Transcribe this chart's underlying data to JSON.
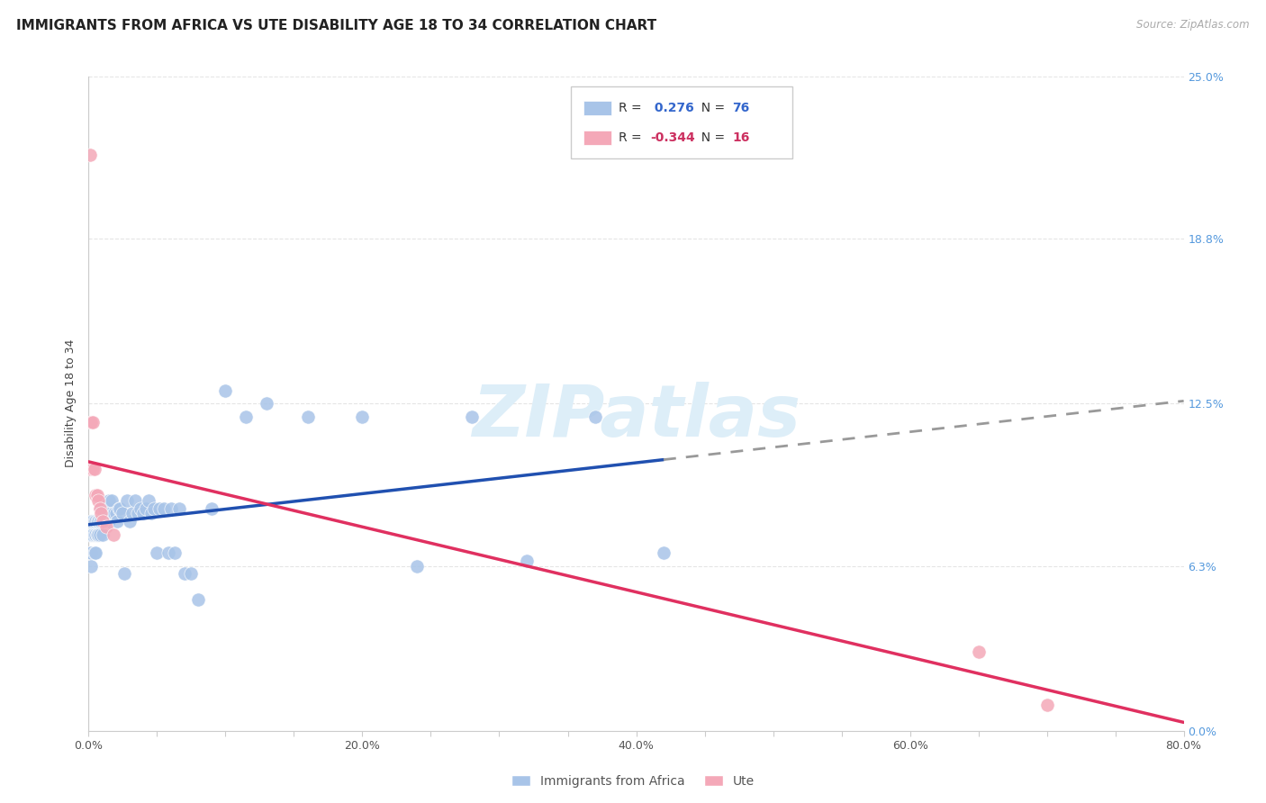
{
  "title": "IMMIGRANTS FROM AFRICA VS UTE DISABILITY AGE 18 TO 34 CORRELATION CHART",
  "source": "Source: ZipAtlas.com",
  "ylabel": "Disability Age 18 to 34",
  "legend_label_1": "Immigrants from Africa",
  "legend_label_2": "Ute",
  "r1": 0.276,
  "n1": 76,
  "r2": -0.344,
  "n2": 16,
  "color1": "#a8c4e8",
  "color2": "#f4a8b8",
  "line_color1": "#2050b0",
  "line_color2": "#e03060",
  "xlim": [
    0.0,
    0.8
  ],
  "ylim": [
    0.0,
    0.25
  ],
  "ytick_vals": [
    0.0,
    0.063,
    0.125,
    0.188,
    0.25
  ],
  "ytick_right_labels": [
    "0.0%",
    "6.3%",
    "12.5%",
    "18.8%",
    "25.0%"
  ],
  "xtick_vals": [
    0.0,
    0.05,
    0.1,
    0.15,
    0.2,
    0.25,
    0.3,
    0.35,
    0.4,
    0.45,
    0.5,
    0.55,
    0.6,
    0.65,
    0.7,
    0.75,
    0.8
  ],
  "xtick_labels": [
    "0.0%",
    "",
    "",
    "",
    "20.0%",
    "",
    "",
    "",
    "40.0%",
    "",
    "",
    "",
    "60.0%",
    "",
    "",
    "",
    "80.0%"
  ],
  "background_color": "#ffffff",
  "grid_color": "#e5e5e5",
  "watermark": "ZIPatlas",
  "watermark_color": "#ddeef8",
  "title_fontsize": 11,
  "tick_fontsize": 9,
  "ylabel_fontsize": 9,
  "africa_x": [
    0.001,
    0.001,
    0.001,
    0.002,
    0.002,
    0.002,
    0.002,
    0.003,
    0.003,
    0.003,
    0.004,
    0.004,
    0.004,
    0.005,
    0.005,
    0.005,
    0.006,
    0.006,
    0.006,
    0.007,
    0.007,
    0.007,
    0.008,
    0.008,
    0.009,
    0.009,
    0.01,
    0.01,
    0.011,
    0.012,
    0.013,
    0.014,
    0.015,
    0.015,
    0.016,
    0.017,
    0.018,
    0.019,
    0.02,
    0.021,
    0.022,
    0.023,
    0.025,
    0.026,
    0.028,
    0.03,
    0.032,
    0.034,
    0.036,
    0.038,
    0.04,
    0.042,
    0.044,
    0.046,
    0.048,
    0.05,
    0.052,
    0.055,
    0.058,
    0.06,
    0.063,
    0.066,
    0.07,
    0.075,
    0.08,
    0.09,
    0.1,
    0.115,
    0.13,
    0.16,
    0.2,
    0.24,
    0.28,
    0.32,
    0.37,
    0.42
  ],
  "africa_y": [
    0.075,
    0.075,
    0.068,
    0.075,
    0.068,
    0.08,
    0.063,
    0.075,
    0.075,
    0.08,
    0.075,
    0.068,
    0.08,
    0.075,
    0.08,
    0.068,
    0.08,
    0.075,
    0.075,
    0.08,
    0.08,
    0.075,
    0.08,
    0.075,
    0.08,
    0.085,
    0.085,
    0.075,
    0.08,
    0.08,
    0.085,
    0.083,
    0.08,
    0.088,
    0.083,
    0.088,
    0.083,
    0.083,
    0.083,
    0.08,
    0.085,
    0.085,
    0.083,
    0.06,
    0.088,
    0.08,
    0.083,
    0.088,
    0.083,
    0.085,
    0.083,
    0.085,
    0.088,
    0.083,
    0.085,
    0.068,
    0.085,
    0.085,
    0.068,
    0.085,
    0.068,
    0.085,
    0.06,
    0.06,
    0.05,
    0.085,
    0.13,
    0.12,
    0.125,
    0.12,
    0.12,
    0.063,
    0.12,
    0.065,
    0.12,
    0.068
  ],
  "ute_x": [
    0.001,
    0.001,
    0.002,
    0.003,
    0.003,
    0.004,
    0.005,
    0.006,
    0.007,
    0.008,
    0.009,
    0.01,
    0.013,
    0.018,
    0.65,
    0.7
  ],
  "ute_y": [
    0.22,
    0.1,
    0.118,
    0.118,
    0.1,
    0.1,
    0.09,
    0.09,
    0.088,
    0.085,
    0.083,
    0.08,
    0.078,
    0.075,
    0.03,
    0.01
  ]
}
